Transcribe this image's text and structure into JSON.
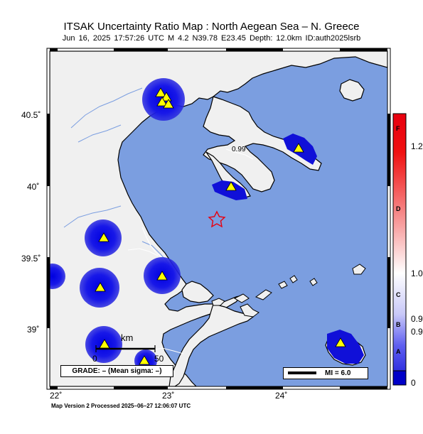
{
  "header": {
    "title": "ITSAK Uncertainty Ratio Map : North Aegean Sea – N. Greece",
    "subtitle": "Jun 16, 2025 17:57:26 UTC   M 4.2   N39.78 E23.45   Depth: 12.0km   ID:auth2025lsrb"
  },
  "axes": {
    "lat_labels": [
      "40.5˚",
      "40˚",
      "39.5˚",
      "39˚"
    ],
    "lon_labels": [
      "22˚",
      "23˚",
      "24˚"
    ]
  },
  "colorbar": {
    "letter_labels": [
      "F",
      "D",
      "C",
      "B",
      "A"
    ],
    "value_labels": [
      "1.2",
      "1.0",
      "0.9",
      "0.9",
      "0"
    ],
    "colors": {
      "top": "#e8000f",
      "middle": "#ffffff",
      "bottom": "#0000c8"
    }
  },
  "scale_bar": {
    "unit": "km",
    "start": "0",
    "end": "50"
  },
  "contour_label": "0.99",
  "grade": "GRADE: – (Mean sigma: –)",
  "mi_legend": "MI = 6.0",
  "footer": "Map Version 2 Processed 2025–06–27 12:06:07 UTC",
  "epicenter": {
    "lat": 39.78,
    "lon": 23.45,
    "symbol": "star-icon",
    "color": "#e8000f"
  },
  "stations_symbol": "triangle-icon",
  "colors": {
    "sea": "#7b9ee0",
    "land": "#f0f0f0",
    "uncertainty_low": "#1010d8",
    "station": "#ffff00"
  }
}
